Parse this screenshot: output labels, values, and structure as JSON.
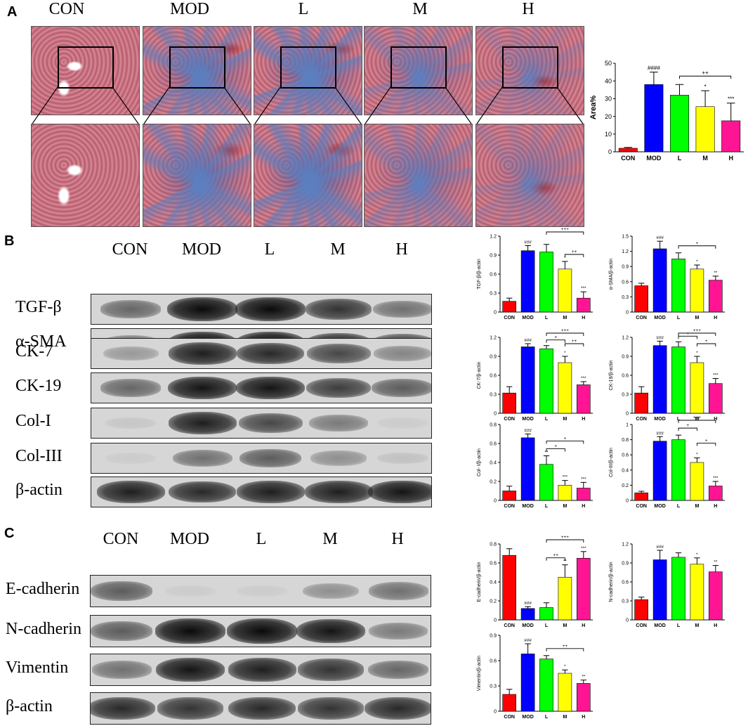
{
  "panels": {
    "a": "A",
    "b": "B",
    "c": "C"
  },
  "groups": [
    "CON",
    "MOD",
    "L",
    "M",
    "H"
  ],
  "bar_colors": [
    "#ff0000",
    "#0000ff",
    "#00ff00",
    "#ffff00",
    "#ff1493"
  ],
  "micro_colors": {
    "normal_base": "#d98a95",
    "normal_dark": "#b55a6e",
    "fibrosis_base": "#5b7fc0",
    "fibrosis_dark": "#2f4f9f",
    "blood": "#c0281e"
  },
  "blot_rows_b": [
    "TGF-β",
    "α-SMA",
    "CK-7",
    "CK-19",
    "Col-I",
    "Col-III",
    "β-actin"
  ],
  "blot_rows_c": [
    "E-cadherin",
    "N-cadherin",
    "Vimentin",
    "β-actin"
  ],
  "blot_intensity_b": [
    [
      0.55,
      1.0,
      1.0,
      0.8,
      0.5
    ],
    [
      0.5,
      1.0,
      1.0,
      0.85,
      0.7
    ],
    [
      0.3,
      0.9,
      0.85,
      0.7,
      0.4
    ],
    [
      0.55,
      0.95,
      0.95,
      0.75,
      0.6
    ],
    [
      0.08,
      0.9,
      0.7,
      0.45,
      0.05
    ],
    [
      0.05,
      0.5,
      0.6,
      0.35,
      0.1
    ],
    [
      0.9,
      0.85,
      0.9,
      0.9,
      0.95
    ]
  ],
  "blot_intensity_c": [
    [
      0.6,
      0.05,
      0.05,
      0.35,
      0.5
    ],
    [
      0.6,
      1.0,
      1.0,
      0.95,
      0.45
    ],
    [
      0.5,
      0.95,
      0.9,
      0.8,
      0.55
    ],
    [
      0.85,
      0.8,
      0.85,
      0.8,
      0.85
    ]
  ],
  "chart_data": [
    {
      "id": "area",
      "type": "bar",
      "categories": [
        "CON",
        "MOD",
        "L",
        "M",
        "H"
      ],
      "values": [
        2,
        38,
        32,
        25.5,
        17.5
      ],
      "errors": [
        0.5,
        7,
        6,
        9,
        10
      ],
      "ylabel": "Area%",
      "ylim": [
        0,
        50
      ],
      "yticks": [
        0,
        10,
        20,
        30,
        40,
        50
      ],
      "star_labels": [
        "",
        "####",
        "",
        "*",
        "***"
      ],
      "brackets": [
        {
          "from": 2,
          "to": 4,
          "label": "++"
        }
      ]
    },
    {
      "id": "tgf",
      "type": "bar",
      "categories": [
        "CON",
        "MOD",
        "L",
        "M",
        "H"
      ],
      "values": [
        0.17,
        0.97,
        0.95,
        0.68,
        0.22
      ],
      "errors": [
        0.05,
        0.08,
        0.12,
        0.12,
        0.1
      ],
      "ylabel": "TGF-β/β-actin",
      "ylim": [
        0,
        1.2
      ],
      "yticks": [
        0,
        0.3,
        0.6,
        0.9,
        1.2
      ],
      "star_labels": [
        "",
        "###",
        "",
        "*",
        "***"
      ],
      "brackets": [
        {
          "from": 2,
          "to": 4,
          "label": "+++"
        },
        {
          "from": 3,
          "to": 4,
          "label": "++"
        }
      ]
    },
    {
      "id": "sma",
      "type": "bar",
      "categories": [
        "CON",
        "MOD",
        "L",
        "M",
        "H"
      ],
      "values": [
        0.52,
        1.25,
        1.05,
        0.85,
        0.63
      ],
      "errors": [
        0.05,
        0.15,
        0.12,
        0.08,
        0.08
      ],
      "ylabel": "α-SMA/β-actin",
      "ylim": [
        0,
        1.5
      ],
      "yticks": [
        0,
        0.3,
        0.6,
        0.9,
        1.2,
        1.5
      ],
      "star_labels": [
        "",
        "###",
        "",
        "*",
        "**"
      ],
      "brackets": [
        {
          "from": 2,
          "to": 4,
          "label": "+"
        }
      ]
    },
    {
      "id": "ck7",
      "type": "bar",
      "categories": [
        "CON",
        "MOD",
        "L",
        "M",
        "H"
      ],
      "values": [
        0.32,
        1.05,
        1.02,
        0.8,
        0.45
      ],
      "errors": [
        0.1,
        0.05,
        0.05,
        0.1,
        0.05
      ],
      "ylabel": "CK-7/β-actin",
      "ylim": [
        0,
        1.2
      ],
      "yticks": [
        0,
        0.3,
        0.6,
        0.9,
        1.2
      ],
      "star_labels": [
        "",
        "###",
        "",
        "*",
        "***"
      ],
      "brackets": [
        {
          "from": 2,
          "to": 4,
          "label": "+++"
        },
        {
          "from": 2,
          "to": 3,
          "label": "+"
        },
        {
          "from": 3,
          "to": 4,
          "label": "++"
        }
      ]
    },
    {
      "id": "ck19",
      "type": "bar",
      "categories": [
        "CON",
        "MOD",
        "L",
        "M",
        "H"
      ],
      "values": [
        0.32,
        1.07,
        1.05,
        0.8,
        0.47
      ],
      "errors": [
        0.1,
        0.07,
        0.08,
        0.1,
        0.08
      ],
      "ylabel": "CK-19/β-actin",
      "ylim": [
        0,
        1.2
      ],
      "yticks": [
        0,
        0.3,
        0.6,
        0.9,
        1.2
      ],
      "star_labels": [
        "",
        "###",
        "",
        "*",
        "***"
      ],
      "brackets": [
        {
          "from": 2,
          "to": 4,
          "label": "+++"
        },
        {
          "from": 2,
          "to": 3,
          "label": "+"
        },
        {
          "from": 3,
          "to": 4,
          "label": "+"
        }
      ]
    },
    {
      "id": "col1",
      "type": "bar",
      "categories": [
        "CON",
        "MOD",
        "L",
        "M",
        "H"
      ],
      "values": [
        0.1,
        0.66,
        0.38,
        0.16,
        0.13
      ],
      "errors": [
        0.05,
        0.04,
        0.09,
        0.05,
        0.06
      ],
      "ylabel": "Col- I/β-actin",
      "ylim": [
        0,
        0.8
      ],
      "yticks": [
        0,
        0.2,
        0.4,
        0.6,
        0.8
      ],
      "star_labels": [
        "",
        "###",
        "**",
        "***",
        "***"
      ],
      "brackets": [
        {
          "from": 2,
          "to": 4,
          "label": "+"
        },
        {
          "from": 2,
          "to": 3,
          "label": "+"
        }
      ]
    },
    {
      "id": "col3",
      "type": "bar",
      "categories": [
        "CON",
        "MOD",
        "L",
        "M",
        "H"
      ],
      "values": [
        0.1,
        0.78,
        0.8,
        0.5,
        0.19
      ],
      "errors": [
        0.02,
        0.06,
        0.06,
        0.06,
        0.06
      ],
      "ylabel": "Col-III/β-actin",
      "ylim": [
        0,
        1.0
      ],
      "yticks": [
        0,
        0.2,
        0.4,
        0.6,
        0.8,
        1.0
      ],
      "star_labels": [
        "",
        "###",
        "",
        "*",
        "***"
      ],
      "brackets": [
        {
          "from": 2,
          "to": 4,
          "label": "+++"
        },
        {
          "from": 2,
          "to": 3,
          "label": "+"
        },
        {
          "from": 3,
          "to": 4,
          "label": "+"
        }
      ]
    },
    {
      "id": "ecad",
      "type": "bar",
      "categories": [
        "CON",
        "MOD",
        "L",
        "M",
        "H"
      ],
      "values": [
        0.68,
        0.12,
        0.13,
        0.45,
        0.65
      ],
      "errors": [
        0.07,
        0.02,
        0.05,
        0.13,
        0.07
      ],
      "ylabel": "E-cadherin/β-actin",
      "ylim": [
        0,
        0.8
      ],
      "yticks": [
        0,
        0.2,
        0.4,
        0.6,
        0.8
      ],
      "star_labels": [
        "",
        "###",
        "",
        "**",
        "***"
      ],
      "brackets": [
        {
          "from": 2,
          "to": 4,
          "label": "+++"
        },
        {
          "from": 2,
          "to": 3,
          "label": "++"
        }
      ]
    },
    {
      "id": "ncad",
      "type": "bar",
      "categories": [
        "CON",
        "MOD",
        "L",
        "M",
        "H"
      ],
      "values": [
        0.32,
        0.95,
        0.99,
        0.88,
        0.76
      ],
      "errors": [
        0.04,
        0.15,
        0.07,
        0.1,
        0.1
      ],
      "ylabel": "N-cadherin/β-actin",
      "ylim": [
        0,
        1.2
      ],
      "yticks": [
        0,
        0.3,
        0.6,
        0.9,
        1.2
      ],
      "star_labels": [
        "",
        "###",
        "",
        "*",
        "**"
      ],
      "brackets": []
    },
    {
      "id": "vim",
      "type": "bar",
      "categories": [
        "CON",
        "MOD",
        "L",
        "M",
        "H"
      ],
      "values": [
        0.2,
        0.68,
        0.62,
        0.45,
        0.33
      ],
      "errors": [
        0.06,
        0.12,
        0.04,
        0.04,
        0.04
      ],
      "ylabel": "Vimentin/β-actin",
      "ylim": [
        0,
        0.9
      ],
      "yticks": [
        0,
        0.3,
        0.6,
        0.9
      ],
      "star_labels": [
        "",
        "###",
        "",
        "*",
        "**"
      ],
      "brackets": [
        {
          "from": 2,
          "to": 4,
          "label": "++"
        }
      ]
    }
  ]
}
